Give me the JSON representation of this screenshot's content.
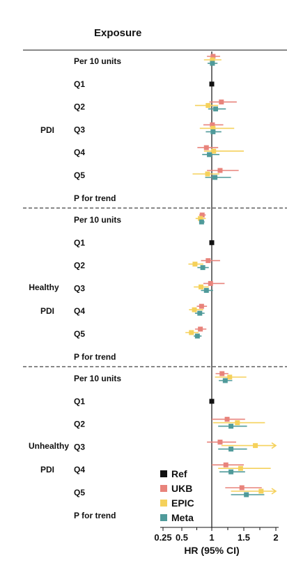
{
  "chart_data": {
    "type": "forest",
    "header": "Exposure",
    "xlabel": "HR (95% CI)",
    "x_ticks": [
      "0.25",
      "0.5",
      "1",
      "1.5",
      "2"
    ],
    "x_tick_values": [
      0.25,
      0.5,
      1,
      1.5,
      2
    ],
    "xlim": [
      0.25,
      2
    ],
    "reference_value": 1,
    "legend": [
      {
        "name": "Ref",
        "color": "#111111"
      },
      {
        "name": "UKB",
        "color": "#e8837b"
      },
      {
        "name": "EPIC",
        "color": "#f5d15b"
      },
      {
        "name": "Meta",
        "color": "#4f9a9a"
      }
    ],
    "groups": [
      {
        "label_lines": [
          "PDI"
        ],
        "rows": [
          {
            "label": "Per 10 units",
            "UKB": [
              1.02,
              0.92,
              1.13
            ],
            "EPIC": [
              1.01,
              0.87,
              1.15
            ],
            "Meta": [
              1.01,
              0.93,
              1.09
            ]
          },
          {
            "label": "Q1",
            "Ref": 1
          },
          {
            "label": "Q2",
            "UKB": [
              1.15,
              0.96,
              1.39
            ],
            "EPIC": [
              0.94,
              0.72,
              1.1
            ],
            "Meta": [
              1.06,
              0.94,
              1.22
            ]
          },
          {
            "label": "Q3",
            "UKB": [
              1.01,
              0.86,
              1.18
            ],
            "EPIC": [
              1.02,
              0.8,
              1.35
            ],
            "Meta": [
              1.02,
              0.9,
              1.15
            ]
          },
          {
            "label": "Q4",
            "UKB": [
              0.91,
              0.76,
              1.1
            ],
            "EPIC": [
              1.03,
              0.87,
              1.5
            ],
            "Meta": [
              0.96,
              0.84,
              1.12
            ]
          },
          {
            "label": "Q5",
            "UKB": [
              1.13,
              0.92,
              1.42
            ],
            "EPIC": [
              0.93,
              0.68,
              1.12
            ],
            "Meta": [
              1.05,
              0.89,
              1.3
            ]
          },
          {
            "label": "P for trend"
          }
        ]
      },
      {
        "label_lines": [
          "Healthy",
          "PDI"
        ],
        "rows": [
          {
            "label": "Per 10 units",
            "UKB": [
              0.84,
              0.79,
              0.9
            ],
            "EPIC": [
              0.81,
              0.73,
              0.9
            ],
            "Meta": [
              0.83,
              0.79,
              0.88
            ]
          },
          {
            "label": "Q1",
            "Ref": 1
          },
          {
            "label": "Q2",
            "UKB": [
              0.94,
              0.82,
              1.13
            ],
            "EPIC": [
              0.72,
              0.61,
              0.86
            ],
            "Meta": [
              0.85,
              0.76,
              0.95
            ]
          },
          {
            "label": "Q3",
            "UKB": [
              0.98,
              0.86,
              1.2
            ],
            "EPIC": [
              0.82,
              0.7,
              0.95
            ],
            "Meta": [
              0.91,
              0.82,
              1.02
            ]
          },
          {
            "label": "Q4",
            "UKB": [
              0.83,
              0.75,
              0.92
            ],
            "EPIC": [
              0.71,
              0.62,
              0.86
            ],
            "Meta": [
              0.8,
              0.72,
              0.88
            ]
          },
          {
            "label": "Q5",
            "UKB": [
              0.81,
              0.72,
              0.91
            ],
            "EPIC": [
              0.66,
              0.56,
              0.78
            ],
            "Meta": [
              0.76,
              0.7,
              0.83
            ]
          },
          {
            "label": "P for trend"
          }
        ]
      },
      {
        "label_lines": [
          "Unhealthy",
          "PDI"
        ],
        "rows": [
          {
            "label": "Per 10 units",
            "UKB": [
              1.16,
              1.06,
              1.26
            ],
            "EPIC": [
              1.28,
              1.05,
              1.54
            ],
            "Meta": [
              1.21,
              1.11,
              1.32
            ]
          },
          {
            "label": "Q1",
            "Ref": 1
          },
          {
            "label": "Q2",
            "UKB": [
              1.24,
              1.0,
              1.52
            ],
            "EPIC": [
              1.4,
              1.02,
              1.83
            ],
            "Meta": [
              1.3,
              1.1,
              1.55
            ]
          },
          {
            "label": "Q3",
            "UKB": [
              1.13,
              0.92,
              1.38
            ],
            "EPIC": [
              1.68,
              1.15,
              2.0
            ],
            "Meta": [
              1.3,
              1.1,
              1.55
            ]
          },
          {
            "label": "Q4",
            "UKB": [
              1.22,
              1.0,
              1.5
            ],
            "EPIC": [
              1.45,
              1.1,
              1.92
            ],
            "Meta": [
              1.3,
              1.12,
              1.52
            ]
          },
          {
            "label": "Q5",
            "UKB": [
              1.47,
              1.21,
              1.78
            ],
            "EPIC": [
              1.77,
              1.3,
              2.0
            ],
            "Meta": [
              1.54,
              1.3,
              1.82
            ]
          },
          {
            "label": "P for trend"
          }
        ]
      }
    ]
  }
}
